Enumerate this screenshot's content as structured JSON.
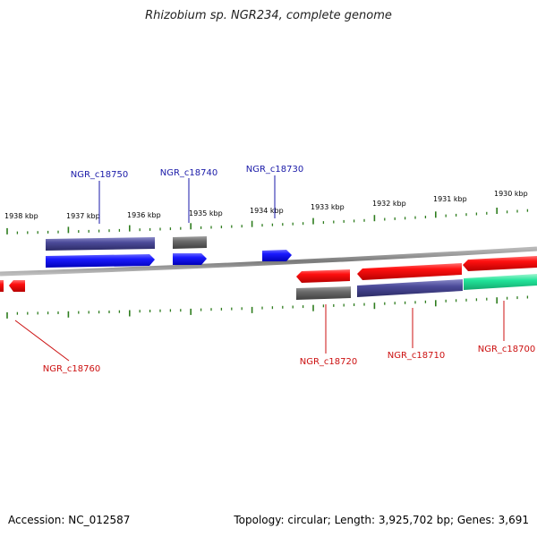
{
  "title": "Rhizobium sp. NGR234, complete genome",
  "footer": {
    "accession": "Accession: NC_012587",
    "stats": "Topology: circular; Length: 3,925,702 bp; Genes: 3,691"
  },
  "colors": {
    "backbone": "#8a8a8a",
    "tick": "#2e7d1e",
    "forward_gene": "#1a1aff",
    "reverse_gene": "#ff1010",
    "cds_purple": "#4b4a99",
    "cds_gray": "#6a6a6a",
    "cds_green": "#22e49a",
    "label_forward": "#1a1aa8",
    "label_reverse": "#cc1010"
  },
  "ruler": {
    "labels": [
      "1938 kbp",
      "1937 kbp",
      "1936 kbp",
      "1935 kbp",
      "1934 kbp",
      "1933 kbp",
      "1932 kbp",
      "1931 kbp",
      "1930 kbp"
    ]
  },
  "genes": [
    {
      "id": "NGR_c18750",
      "strand": "forward"
    },
    {
      "id": "NGR_c18740",
      "strand": "forward"
    },
    {
      "id": "NGR_c18730",
      "strand": "forward"
    },
    {
      "id": "NGR_c18760",
      "strand": "reverse"
    },
    {
      "id": "NGR_c18720",
      "strand": "reverse"
    },
    {
      "id": "NGR_c18710",
      "strand": "reverse"
    },
    {
      "id": "NGR_c18700",
      "strand": "reverse"
    }
  ]
}
